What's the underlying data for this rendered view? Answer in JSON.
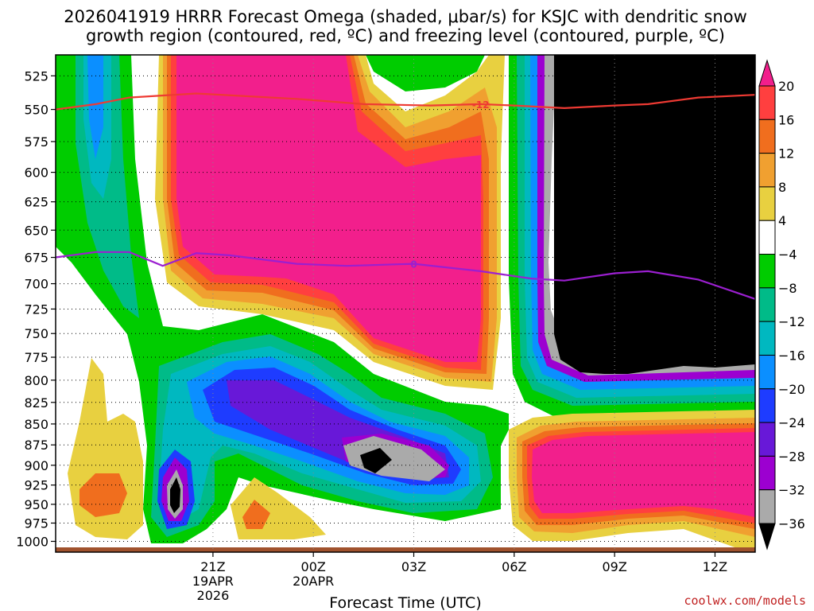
{
  "title_line1": "2026041919 HRRR Forecast Omega (shaded, μbar/s) for KSJC with dendritic snow",
  "title_line2": "growth region (contoured, red, ºC) and freezing level (contoured, purple, ºC)",
  "credit": "coolwx.com/models",
  "chart_data": {
    "type": "heatmap",
    "title": "2026041919 HRRR Forecast Omega (shaded, μbar/s) for KSJC with dendritic snow growth region (contoured, red, ºC) and freezing level (contoured, purple, ºC)",
    "xlabel": "Forecast Time (UTC)",
    "ylabel": "",
    "y_axis": {
      "levels": [
        525,
        550,
        575,
        600,
        625,
        650,
        675,
        700,
        725,
        750,
        775,
        800,
        825,
        850,
        875,
        900,
        925,
        950,
        975,
        1000
      ],
      "ylim": [
        1015,
        510
      ],
      "scale": "log"
    },
    "x_axis": {
      "xlim": [
        -2.7,
        18.2
      ],
      "ticks": [
        {
          "hour": 2,
          "line1": "21Z",
          "line2": "19APR",
          "line3": "2026"
        },
        {
          "hour": 5,
          "line1": "00Z",
          "line2": "20APR",
          "line3": ""
        },
        {
          "hour": 8,
          "line1": "03Z",
          "line2": "",
          "line3": ""
        },
        {
          "hour": 11,
          "line1": "06Z",
          "line2": "",
          "line3": ""
        },
        {
          "hour": 14,
          "line1": "09Z",
          "line2": "",
          "line3": ""
        },
        {
          "hour": 17,
          "line1": "12Z",
          "line2": "",
          "line3": ""
        }
      ],
      "grid": true
    },
    "colorbar": {
      "labels": [
        "20",
        "16",
        "12",
        "8",
        "4",
        "−4",
        "−8",
        "−12",
        "−16",
        "−20",
        "−24",
        "−28",
        "−32",
        "−36"
      ],
      "colors": [
        "#f21f8c",
        "#ff3f3f",
        "#f06e1e",
        "#f0a030",
        "#e8d040",
        "#ffffff",
        "#00cc00",
        "#00bb88",
        "#00b8c0",
        "#0b8fff",
        "#1e3cff",
        "#6818d8",
        "#9c00d0",
        "#aaaaaa",
        "#000000"
      ]
    },
    "contours": [
      {
        "name": "-12",
        "color": "#ee3a33",
        "label": "-12",
        "points": [
          [
            -2.7,
            550
          ],
          [
            -1.5,
            546
          ],
          [
            -0.5,
            541
          ],
          [
            1.5,
            538
          ],
          [
            4.5,
            542
          ],
          [
            6.5,
            546
          ],
          [
            8.5,
            547
          ],
          [
            10,
            546
          ],
          [
            11,
            547
          ],
          [
            12.5,
            549
          ],
          [
            14,
            547
          ],
          [
            15,
            546
          ],
          [
            16.5,
            541
          ],
          [
            18.2,
            539
          ]
        ]
      },
      {
        "name": "0",
        "color": "#9b1fd0",
        "label": "0",
        "points": [
          [
            -2.7,
            675
          ],
          [
            -1.5,
            670
          ],
          [
            -0.5,
            670
          ],
          [
            0.5,
            683
          ],
          [
            1.5,
            671
          ],
          [
            2.5,
            673
          ],
          [
            4.5,
            681
          ],
          [
            6,
            683
          ],
          [
            8,
            681
          ],
          [
            10,
            688
          ],
          [
            11.5,
            695
          ],
          [
            12.5,
            697
          ],
          [
            14,
            690
          ],
          [
            15,
            688
          ],
          [
            16.5,
            696
          ],
          [
            18.2,
            715
          ]
        ]
      }
    ],
    "shaded_regions": [
      {
        "value_range": "-8 to -4",
        "color": "#00cc00",
        "description": "green"
      },
      {
        "value_range": "> 20",
        "color": "#f21f8c",
        "description": "magenta"
      },
      {
        "value_range": "< -36",
        "color": "#000000",
        "description": "black"
      }
    ]
  }
}
